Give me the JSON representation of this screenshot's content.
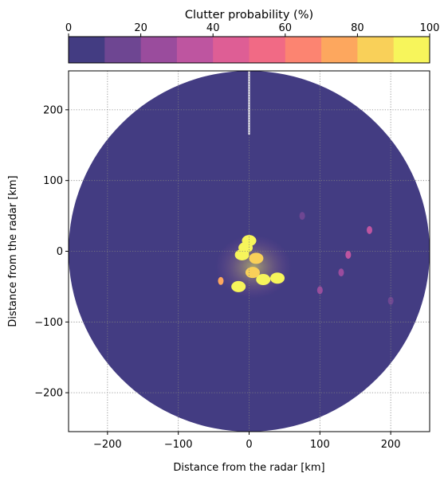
{
  "chart_data": {
    "type": "heatmap",
    "colorbar": {
      "title": "Clutter probability  (%)",
      "min": 0,
      "max": 100,
      "ticks": [
        0,
        20,
        40,
        60,
        80,
        100
      ],
      "tick_labels": [
        "0",
        "20",
        "40",
        "60",
        "80",
        "100"
      ],
      "bin_colors": [
        "#433C82",
        "#6E4692",
        "#9A4C9D",
        "#BE55A0",
        "#DE5E95",
        "#F16A85",
        "#FC8471",
        "#FDA75E",
        "#F9D059",
        "#F7F55B"
      ]
    },
    "xlabel": "Distance from the radar [km]",
    "ylabel": "Distance from the radar [km]",
    "xlim": [
      -255,
      255
    ],
    "ylim": [
      -255,
      255
    ],
    "x_ticks": [
      -200,
      -100,
      0,
      100,
      200
    ],
    "x_tick_labels": [
      "−200",
      "−100",
      "0",
      "100",
      "200"
    ],
    "y_ticks": [
      -200,
      -100,
      0,
      100,
      200
    ],
    "y_tick_labels": [
      "−200",
      "−100",
      "0",
      "100",
      "200"
    ],
    "grid": true,
    "domain_radius_km": 255,
    "background_value_pct": 0,
    "beam_gap": {
      "azimuth_deg": 0,
      "from_km": 165,
      "to_km": 255
    },
    "clutter_regions": [
      {
        "x": -5,
        "y": 5,
        "value_pct": 100
      },
      {
        "x": 0,
        "y": 15,
        "value_pct": 95
      },
      {
        "x": -10,
        "y": -5,
        "value_pct": 90
      },
      {
        "x": 10,
        "y": -10,
        "value_pct": 85
      },
      {
        "x": 20,
        "y": -40,
        "value_pct": 100
      },
      {
        "x": 40,
        "y": -38,
        "value_pct": 95
      },
      {
        "x": 5,
        "y": -30,
        "value_pct": 80
      },
      {
        "x": -15,
        "y": -50,
        "value_pct": 90
      },
      {
        "x": -40,
        "y": -42,
        "value_pct": 70
      },
      {
        "x": 100,
        "y": -55,
        "value_pct": 25
      },
      {
        "x": 170,
        "y": 30,
        "value_pct": 30
      },
      {
        "x": 140,
        "y": -5,
        "value_pct": 30
      },
      {
        "x": 130,
        "y": -30,
        "value_pct": 20
      },
      {
        "x": 75,
        "y": 50,
        "value_pct": 15
      },
      {
        "x": 200,
        "y": -70,
        "value_pct": 15
      }
    ]
  }
}
